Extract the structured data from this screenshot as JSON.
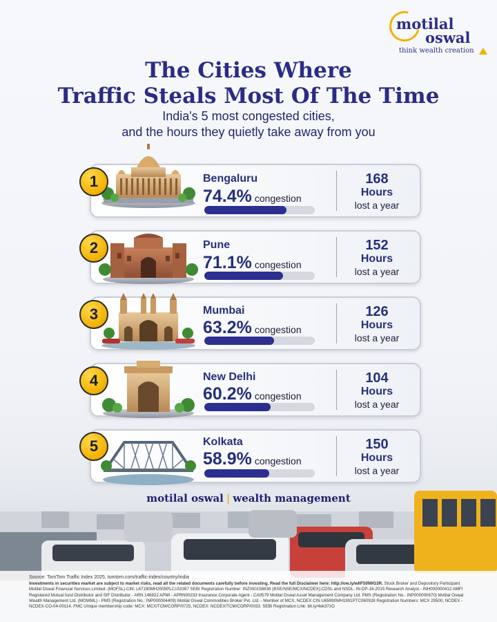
{
  "logo": {
    "line1": "motilal",
    "line2": "oswal",
    "tagline": "think wealth creation"
  },
  "title": {
    "line1": "The Cities Where",
    "line2": "Traffic Steals Most Of The Time"
  },
  "subtitle": {
    "line1": "India's 5 most congested cities,",
    "line2": "and the hours they quietly take away from you"
  },
  "cities": [
    {
      "rank": "1",
      "name": "Bengaluru",
      "congestion": "74.4%",
      "congestion_value": 74.4,
      "hours": "168"
    },
    {
      "rank": "2",
      "name": "Pune",
      "congestion": "71.1%",
      "congestion_value": 71.1,
      "hours": "152"
    },
    {
      "rank": "3",
      "name": "Mumbai",
      "congestion": "63.2%",
      "congestion_value": 63.2,
      "hours": "126"
    },
    {
      "rank": "4",
      "name": "New Delhi",
      "congestion": "60.2%",
      "congestion_value": 60.2,
      "hours": "104"
    },
    {
      "rank": "5",
      "name": "Kolkata",
      "congestion": "58.9%",
      "congestion_value": 58.9,
      "hours": "150"
    }
  ],
  "labels": {
    "congestion": "congestion",
    "hours_unit": "Hours",
    "hours_suffix": "lost a year"
  },
  "brand": {
    "left": "motilal oswal",
    "separator": "|",
    "right": "wealth management"
  },
  "disclaimer": {
    "source": "Source: TomTom Traffic Index 2025, tomtom.com/traffic-index/country/india",
    "bold": "Investments in securities market are subject to market risks, read all the related documents carefully before investing. Read the full Disclaimer here: http://ow.ly/wIlF50IWG3R.",
    "text": "Stock Broker and Depository Participant Motilal Oswal Financial Services Limited. (MOFSL) CIN: L67190MH2005PLC153397 SEBI Registration Number: INZ000158836 (BSE/NSE/MCX/NCDEX);CDSL and NSDL: IN-DP-16-2015 Research Analyst - INH000000412 AMFI Registered Mutual fund Distributor and SIF Distributor - ARN 146822 APMI - APRN00233 Insurance Corporate Agent - CA0579 Motilal Oswal Asset Management Company Ltd. PMS (Registration No.: INP000000670) Motilal Oswal Wealth Management Ltd. (MOWML) - PMS (Registration No.: INP000004409) Motilal Oswal Commodities Broker Pvt. Ltd. - Member of MCX, NCDEX CIN U65990MH1991PTC060928 Registration Numbers: MCX 29500, NCDEX -NCDEX-CO-04-00114. FMC Unique membership code: MCX: MCX/TCM/CORP/0725, NCDEX: NCDEX/TCM/CORP/0033. SEBI Registration Link: bit.ly/4ek37zO"
  },
  "colors": {
    "navy": "#25307a",
    "gold": "#f2b100",
    "bar_fill": "#2c2f8f",
    "bar_track": "#d5d8de"
  }
}
